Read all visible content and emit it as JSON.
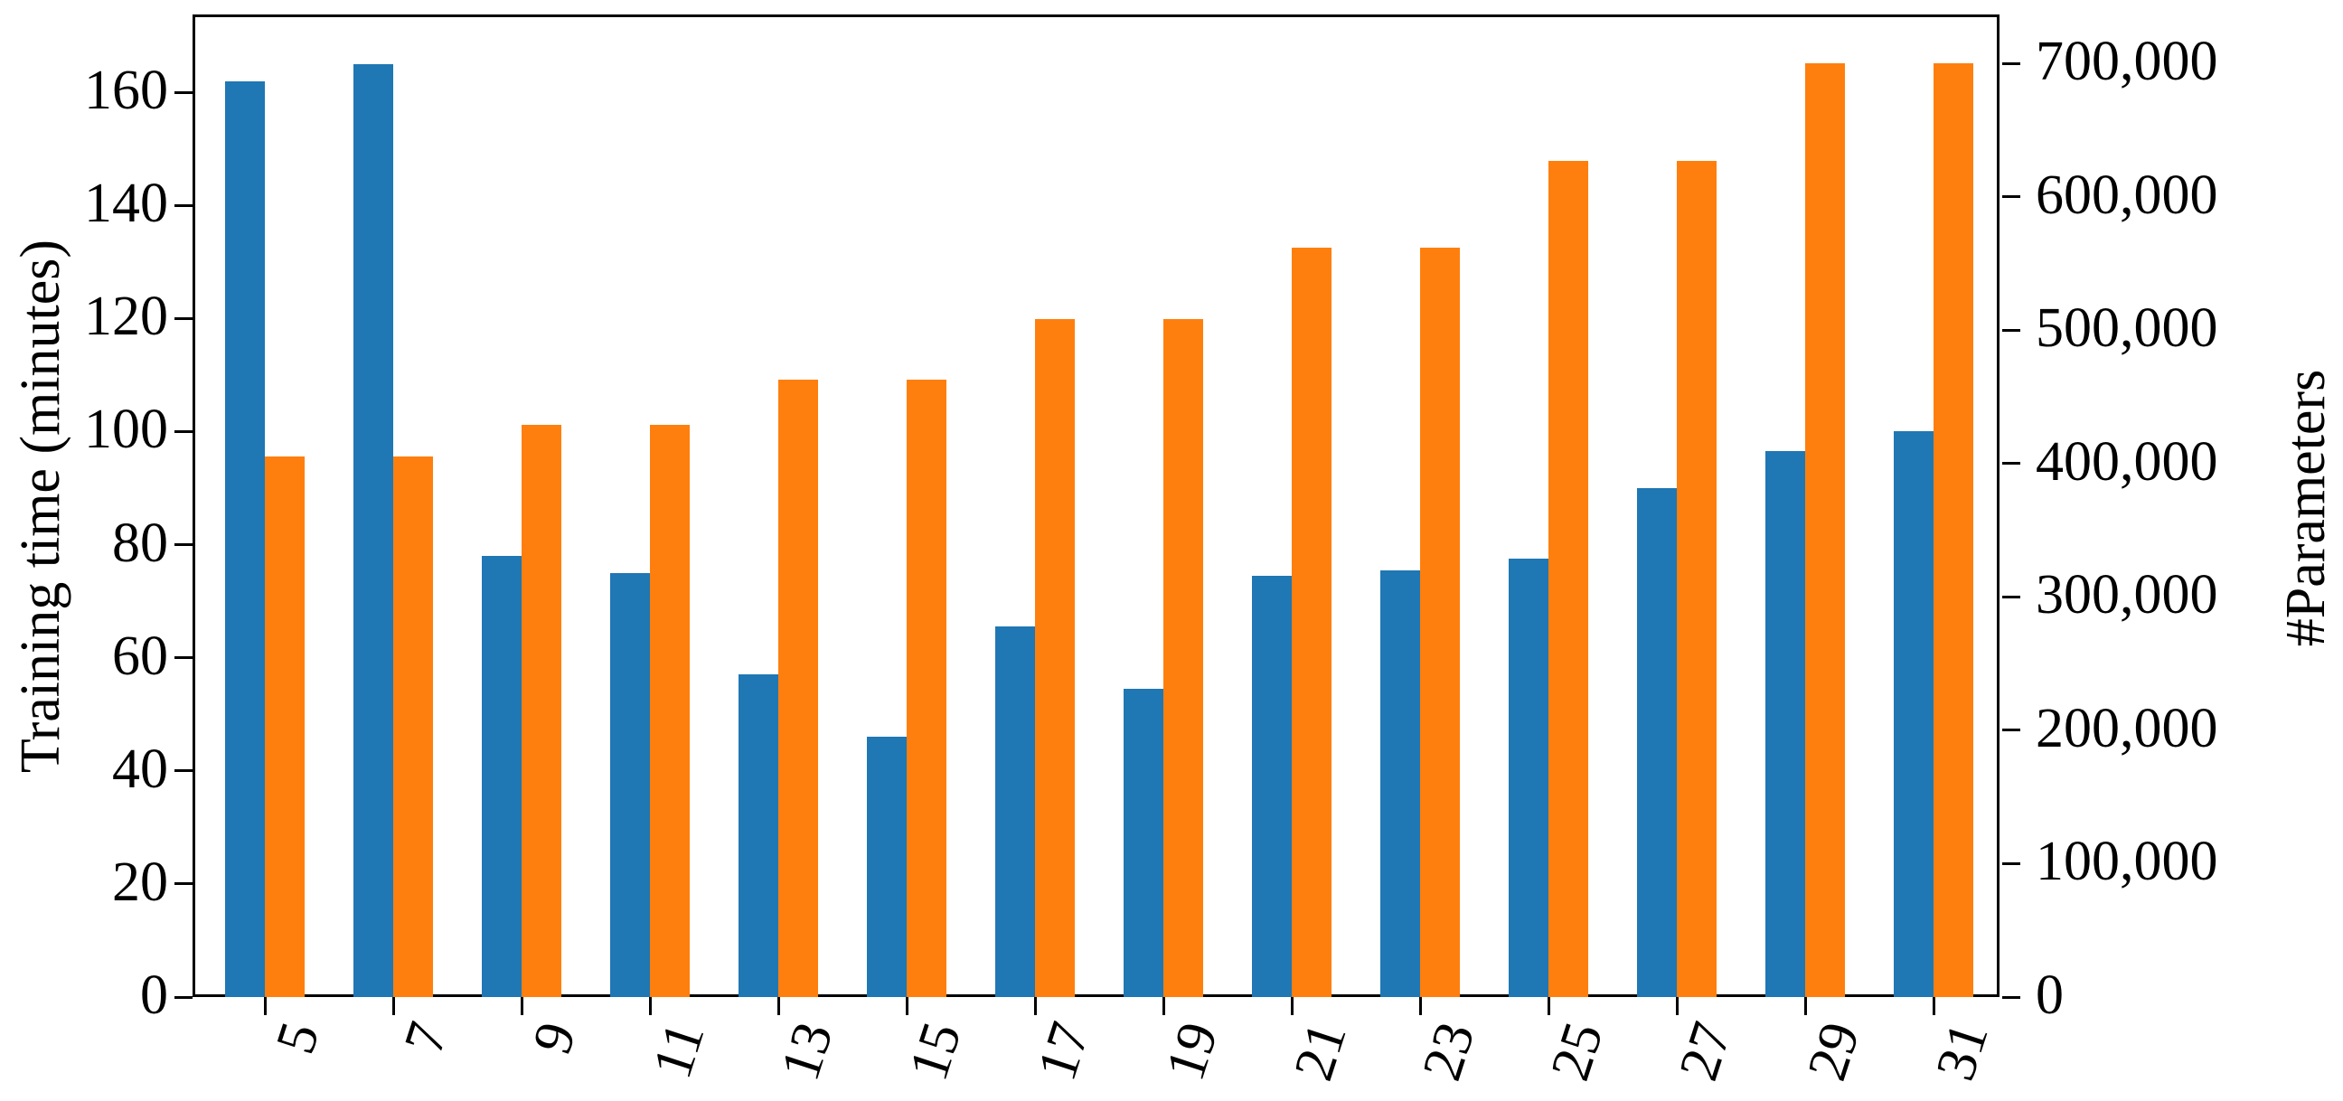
{
  "figure": {
    "left_axis": {
      "label": "Training time (minutes)",
      "tick_labels": [
        "0",
        "20",
        "40",
        "60",
        "80",
        "100",
        "120",
        "140",
        "160"
      ],
      "tick_values": [
        0,
        20,
        40,
        60,
        80,
        100,
        120,
        140,
        160
      ]
    },
    "right_axis": {
      "label": "#Parameters",
      "tick_labels": [
        "0",
        "100,000",
        "200,000",
        "300,000",
        "400,000",
        "500,000",
        "600,000",
        "700,000"
      ],
      "tick_values": [
        0,
        100000,
        200000,
        300000,
        400000,
        500000,
        600000,
        700000
      ]
    },
    "x_axis": {
      "tick_labels": [
        "5",
        "7",
        "9",
        "11",
        "13",
        "15",
        "17",
        "19",
        "21",
        "23",
        "25",
        "27",
        "29",
        "31"
      ]
    },
    "colors": {
      "training_time": "#1f77b4",
      "parameters": "#ff7f0e"
    }
  },
  "chart_data": {
    "type": "bar",
    "categories": [
      5,
      7,
      9,
      11,
      13,
      15,
      17,
      19,
      21,
      23,
      25,
      27,
      29,
      31
    ],
    "series": [
      {
        "name": "Training time (minutes)",
        "axis": "left",
        "color": "#1f77b4",
        "values": [
          162,
          165,
          78,
          75,
          57,
          46,
          65.5,
          54.5,
          74.5,
          75.5,
          77.5,
          90,
          96.5,
          100
        ]
      },
      {
        "name": "#Parameters",
        "axis": "right",
        "color": "#ff7f0e",
        "values": [
          405000,
          405000,
          429000,
          429000,
          463000,
          463000,
          508000,
          508000,
          562000,
          562000,
          627000,
          627000,
          700000,
          700000
        ]
      }
    ],
    "title": "",
    "xlabel": "",
    "ylabel_left": "Training time (minutes)",
    "ylabel_right": "#Parameters",
    "ylim_left": [
      0,
      174
    ],
    "ylim_right": [
      0,
      737000
    ],
    "grid": false,
    "legend": "none"
  }
}
